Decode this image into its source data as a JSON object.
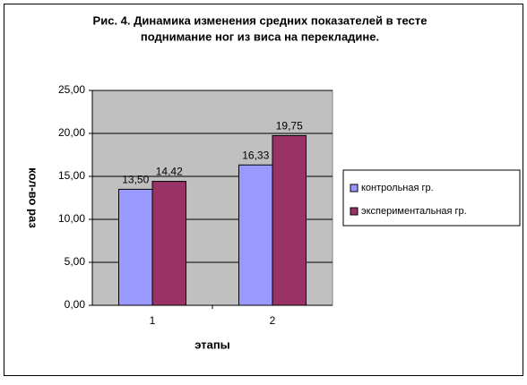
{
  "chart_data": {
    "type": "bar",
    "title": "Рис. 4. Динамика изменения  средних показателей  в тесте",
    "subtitle": "поднимание ног из виса на перекладине.",
    "y_label": "кол-во раз",
    "x_label": "этапы",
    "categories": [
      "1",
      "2"
    ],
    "series": [
      {
        "name": "контрольная  гр.",
        "color": "#9999ff",
        "values": [
          13.5,
          16.33
        ],
        "value_labels": [
          "13,50",
          "16,33"
        ]
      },
      {
        "name": "экспериментальная  гр.",
        "color": "#993366",
        "values": [
          14.42,
          19.75
        ],
        "value_labels": [
          "14,42",
          "19,75"
        ]
      }
    ],
    "ylim": [
      0,
      25
    ],
    "yticks": [
      {
        "value": 0,
        "label": "0,00"
      },
      {
        "value": 5,
        "label": "5,00"
      },
      {
        "value": 10,
        "label": "10,00"
      },
      {
        "value": 15,
        "label": "15,00"
      },
      {
        "value": 20,
        "label": "20,00"
      },
      {
        "value": 25,
        "label": "25,00"
      }
    ],
    "grid": true,
    "legend": "right",
    "plot_background": "#c0c0c0"
  }
}
